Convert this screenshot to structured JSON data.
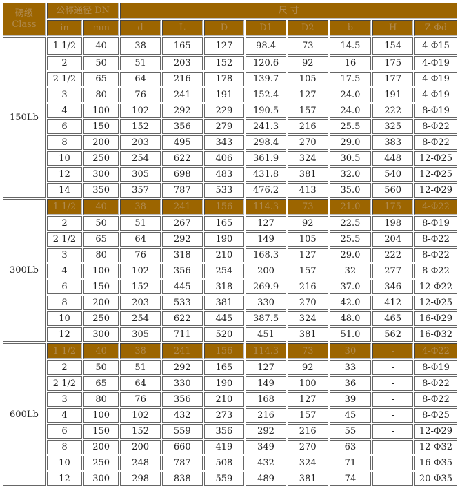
{
  "colors": {
    "header_bg": "#9c6500",
    "header_text": "#b08a4e"
  },
  "header": {
    "class_label": "磅级 Class",
    "dn_label": "公称通径 DN",
    "dim_label": "尺 寸",
    "in": "in",
    "mm": "mm",
    "cols": [
      "d",
      "L",
      "D",
      "D1",
      "D2",
      "b",
      "H",
      "Z-Φd"
    ]
  },
  "groups": [
    {
      "class": "150Lb",
      "rows": [
        [
          "1 1/2",
          "40",
          "38",
          "165",
          "127",
          "98.4",
          "73",
          "14.5",
          "154",
          "4-Φ15"
        ],
        [
          "2",
          "50",
          "51",
          "203",
          "152",
          "120.6",
          "92",
          "16",
          "175",
          "4-Φ19"
        ],
        [
          "2 1/2",
          "65",
          "64",
          "216",
          "178",
          "139.7",
          "105",
          "17.5",
          "177",
          "4-Φ19"
        ],
        [
          "3",
          "80",
          "76",
          "241",
          "191",
          "152.4",
          "127",
          "24.0",
          "191",
          "4-Φ19"
        ],
        [
          "4",
          "100",
          "102",
          "292",
          "229",
          "190.5",
          "157",
          "24.0",
          "222",
          "8-Φ19"
        ],
        [
          "6",
          "150",
          "152",
          "356",
          "279",
          "241.3",
          "216",
          "25.5",
          "325",
          "8-Φ22"
        ],
        [
          "8",
          "200",
          "203",
          "495",
          "343",
          "298.4",
          "270",
          "29.0",
          "383",
          "8-Φ22"
        ],
        [
          "10",
          "250",
          "254",
          "622",
          "406",
          "361.9",
          "324",
          "30.5",
          "448",
          "12-Φ25"
        ],
        [
          "12",
          "300",
          "305",
          "698",
          "483",
          "431.8",
          "381",
          "32.0",
          "540",
          "12-Φ25"
        ],
        [
          "14",
          "350",
          "357",
          "787",
          "533",
          "476.2",
          "413",
          "35.0",
          "560",
          "12-Φ29"
        ]
      ]
    },
    {
      "class": "300Lb",
      "highlight_first": true,
      "rows": [
        [
          "1 1/2",
          "40",
          "38",
          "241",
          "156",
          "114.3",
          "73",
          "21.0",
          "175",
          "4-Φ22"
        ],
        [
          "2",
          "50",
          "51",
          "267",
          "165",
          "127",
          "92",
          "22.5",
          "198",
          "8-Φ19"
        ],
        [
          "2 1/2",
          "65",
          "64",
          "292",
          "190",
          "149",
          "105",
          "25.5",
          "204",
          "8-Φ22"
        ],
        [
          "3",
          "80",
          "76",
          "318",
          "210",
          "168.3",
          "127",
          "29.0",
          "222",
          "8-Φ22"
        ],
        [
          "4",
          "100",
          "102",
          "356",
          "254",
          "200",
          "157",
          "32",
          "277",
          "8-Φ22"
        ],
        [
          "6",
          "150",
          "152",
          "445",
          "318",
          "269.9",
          "216",
          "37.0",
          "346",
          "12-Φ22"
        ],
        [
          "8",
          "200",
          "203",
          "533",
          "381",
          "330",
          "270",
          "42.0",
          "412",
          "12-Φ25"
        ],
        [
          "10",
          "250",
          "254",
          "622",
          "445",
          "387.5",
          "324",
          "48.0",
          "465",
          "16-Φ29"
        ],
        [
          "12",
          "300",
          "305",
          "711",
          "520",
          "451",
          "381",
          "51.0",
          "562",
          "16-Φ32"
        ]
      ]
    },
    {
      "class": "600Lb",
      "highlight_first": true,
      "rows": [
        [
          "1 1/2",
          "40",
          "38",
          "241",
          "156",
          "114.3",
          "73",
          "30",
          "-",
          "4-Φ22"
        ],
        [
          "2",
          "50",
          "51",
          "292",
          "165",
          "127",
          "92",
          "33",
          "-",
          "8-Φ19"
        ],
        [
          "2 1/2",
          "65",
          "64",
          "330",
          "190",
          "149",
          "100",
          "36",
          "-",
          "8-Φ22"
        ],
        [
          "3",
          "80",
          "76",
          "356",
          "210",
          "168",
          "127",
          "39",
          "-",
          "8-Φ22"
        ],
        [
          "4",
          "100",
          "102",
          "432",
          "273",
          "216",
          "157",
          "45",
          "-",
          "8-Φ25"
        ],
        [
          "6",
          "150",
          "152",
          "559",
          "356",
          "292",
          "216",
          "55",
          "-",
          "12-Φ29"
        ],
        [
          "8",
          "200",
          "200",
          "660",
          "419",
          "349",
          "270",
          "63",
          "-",
          "12-Φ32"
        ],
        [
          "10",
          "250",
          "248",
          "787",
          "508",
          "432",
          "324",
          "71",
          "-",
          "16-Φ35"
        ],
        [
          "12",
          "300",
          "298",
          "838",
          "559",
          "489",
          "381",
          "74",
          "-",
          "20-Φ35"
        ]
      ]
    }
  ]
}
